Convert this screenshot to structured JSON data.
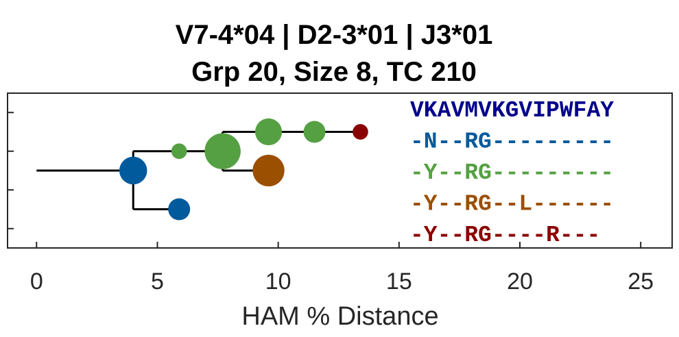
{
  "chart_data": {
    "type": "scatter",
    "title": [
      "V7-4*04 | D2-3*01 | J3*01",
      "Grp 20, Size 8, TC 210"
    ],
    "xlabel": "HAM % Distance",
    "xlim": [
      -1.2,
      26.3
    ],
    "ylim": [
      0,
      4
    ],
    "xticks": [
      0,
      5,
      10,
      15,
      20,
      25
    ],
    "xtick_labels": [
      "0",
      "5",
      "10",
      "15",
      "20",
      "25"
    ],
    "yticks": [
      0.5,
      1.5,
      2.5,
      3.5
    ],
    "grid": false,
    "nodes": [
      {
        "x": 4.0,
        "y": 2.0,
        "size": 1.6,
        "color": "#005a9c"
      },
      {
        "x": 5.9,
        "y": 1.0,
        "size": 1.0,
        "color": "#005a9c"
      },
      {
        "x": 5.9,
        "y": 2.5,
        "size": 0.5,
        "color": "#55a042"
      },
      {
        "x": 7.7,
        "y": 2.5,
        "size": 2.7,
        "color": "#55a042"
      },
      {
        "x": 9.6,
        "y": 3.0,
        "size": 1.5,
        "color": "#55a042"
      },
      {
        "x": 11.5,
        "y": 3.0,
        "size": 1.0,
        "color": "#55a042"
      },
      {
        "x": 13.4,
        "y": 3.0,
        "size": 0.5,
        "color": "#8b0000"
      },
      {
        "x": 9.6,
        "y": 2.0,
        "size": 2.1,
        "color": "#9b4f00"
      }
    ],
    "tree_segments": [
      {
        "x": [
          0,
          4.0
        ],
        "y": [
          2.0,
          2.0
        ]
      },
      {
        "x": [
          4.0,
          4.0
        ],
        "y": [
          1.0,
          2.5
        ]
      },
      {
        "x": [
          4.0,
          5.9
        ],
        "y": [
          1.0,
          1.0
        ]
      },
      {
        "x": [
          4.0,
          7.7
        ],
        "y": [
          2.5,
          2.5
        ]
      },
      {
        "x": [
          7.7,
          7.7
        ],
        "y": [
          2.0,
          3.0
        ]
      },
      {
        "x": [
          7.7,
          13.4
        ],
        "y": [
          3.0,
          3.0
        ]
      },
      {
        "x": [
          7.7,
          9.6
        ],
        "y": [
          2.0,
          2.0
        ]
      }
    ],
    "sequences": [
      {
        "text": "VKAVMVKGVIPWFAY",
        "color": "#00008b"
      },
      {
        "text": "-N--RG---------",
        "color": "#005a9c"
      },
      {
        "text": "-Y--RG---------",
        "color": "#55a042"
      },
      {
        "text": "-Y--RG--L------",
        "color": "#9b4f00"
      },
      {
        "text": "-Y--RG----R---",
        "color": "#8b0000"
      }
    ],
    "colors": {
      "axis": "#262626",
      "tree": "#000000"
    }
  }
}
